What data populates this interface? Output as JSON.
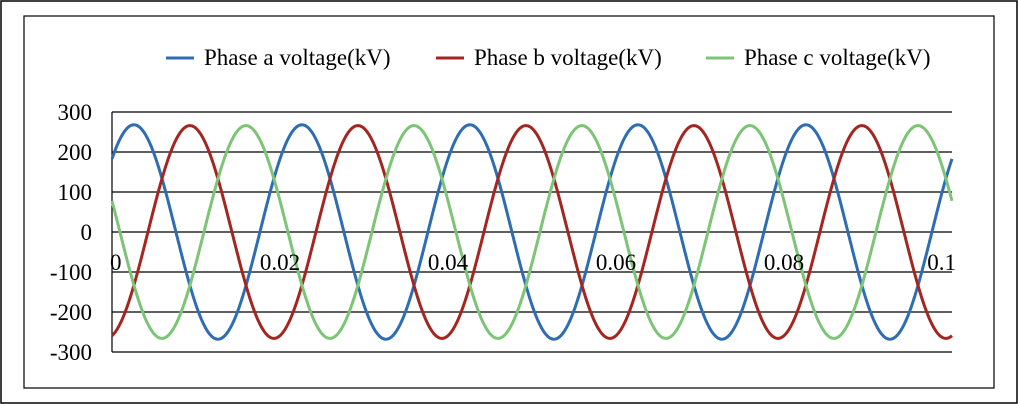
{
  "chart_data": {
    "type": "line",
    "title": "",
    "xlabel": "",
    "ylabel": "",
    "xlim": [
      0,
      0.1
    ],
    "ylim": [
      -300,
      300
    ],
    "x_ticks": [
      0,
      0.02,
      0.04,
      0.06,
      0.08,
      0.1
    ],
    "x_tick_labels": [
      "0",
      "0.02",
      "0.04",
      "0.06",
      "0.08",
      "0.1"
    ],
    "y_ticks": [
      300,
      200,
      100,
      0,
      -100,
      -200,
      -300
    ],
    "y_tick_labels": [
      "300",
      "200",
      "100",
      "0",
      "-100",
      "-200",
      "-300"
    ],
    "grid": "horizontal",
    "legend_position": "top",
    "frequency_hz": 50,
    "series": [
      {
        "name": "Phase a voltage(kV)",
        "color": "#2e6db4",
        "amplitude": 268,
        "phase_deg": 43
      },
      {
        "name": "Phase b voltage(kV)",
        "color": "#a32620",
        "amplitude": 266,
        "phase_deg": -77
      },
      {
        "name": "Phase c voltage(kV)",
        "color": "#7cc576",
        "amplitude": 266,
        "phase_deg": 163
      }
    ]
  }
}
